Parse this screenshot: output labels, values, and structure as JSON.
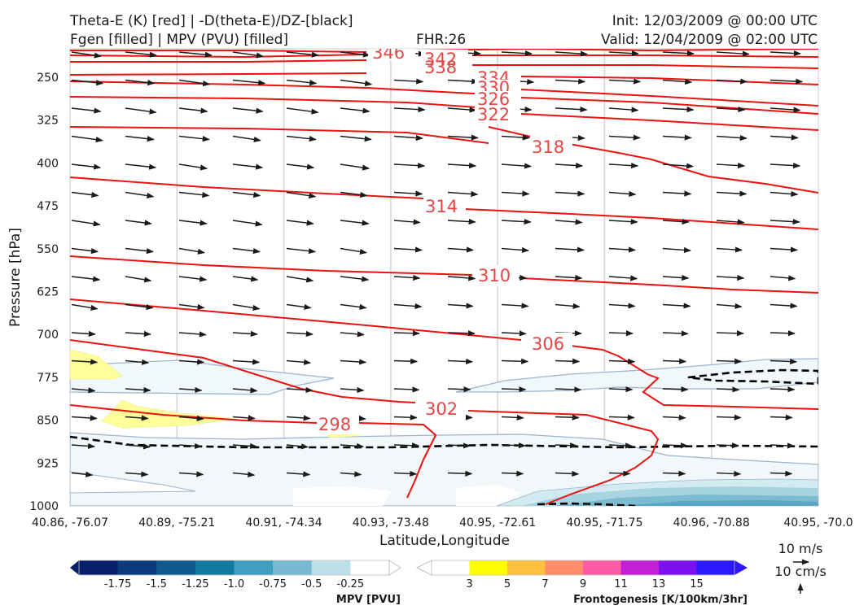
{
  "header": {
    "title_line1": "Theta-E (K) [red] | -D(theta-E)/DZ-[black]",
    "title_line2": "Fgen [filled] | MPV (PVU) [filled]",
    "fhr": "FHR:26",
    "init": "Init: 12/03/2009 @ 00:00 UTC",
    "valid": "Valid: 12/04/2009 @ 02:00 UTC"
  },
  "chart_data": {
    "type": "cross-section",
    "xlabel": "Latitude,Longitude",
    "ylabel": "Pressure [hPa]",
    "x_ticks": [
      "40.86, -76.07",
      "40.89, -75.21",
      "40.91, -74.34",
      "40.93, -73.48",
      "40.95, -72.61",
      "40.95, -71.75",
      "40.96, -70.88",
      "40.95, -70.0"
    ],
    "y_ticks": [
      250,
      325,
      400,
      475,
      550,
      625,
      700,
      775,
      850,
      925,
      1000
    ],
    "ylim": [
      1000,
      200
    ],
    "y_scale": "inverted-pressure",
    "grid": true,
    "theta_e_contours": {
      "color": "#ee1111",
      "levels": [
        298,
        302,
        306,
        310,
        314,
        318,
        322,
        326,
        330,
        334,
        338,
        342,
        346
      ],
      "label_color": "#e64545"
    },
    "static_stability_contour": {
      "color": "#000000",
      "style": "dashed"
    },
    "mpv_colorbar": {
      "label": "MPV [PVU]",
      "ticks": [
        "-1.75",
        "-1.5",
        "-1.25",
        "-1.0",
        "-0.75",
        "-0.5",
        "-0.25"
      ],
      "colors": [
        "#08206a",
        "#0b3a7e",
        "#0e5a8f",
        "#13799f",
        "#3e9fc0",
        "#79bad3",
        "#bcdfea",
        "#ffffff"
      ]
    },
    "fgen_colorbar": {
      "label": "Frontogenesis [K/100km/3hr]",
      "ticks": [
        "3",
        "5",
        "7",
        "9",
        "11",
        "13",
        "15"
      ],
      "colors": [
        "#ffffff",
        "#ffff00",
        "#ffc040",
        "#ff8c6a",
        "#ff5aa5",
        "#c21fd6",
        "#7c10ee",
        "#2a18ff"
      ]
    },
    "wind_key": {
      "speed_label": "10 m/s",
      "vertical_label": "10 cm/s"
    }
  }
}
